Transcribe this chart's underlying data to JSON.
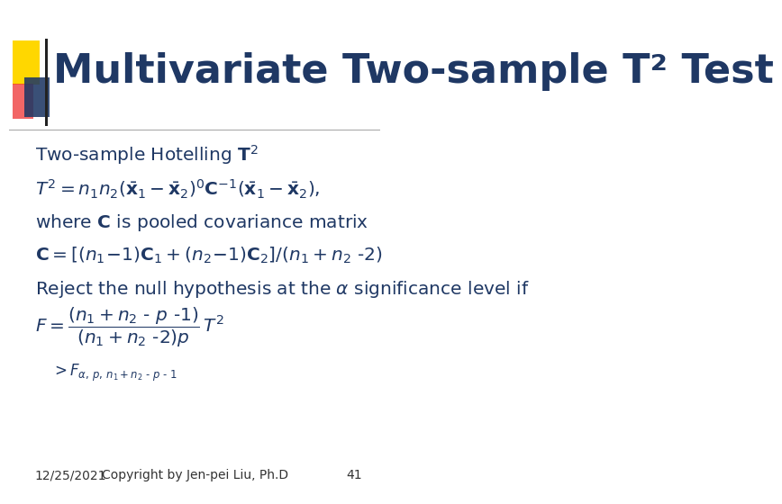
{
  "title": "Multivariate Two-sample T² Test",
  "title_color": "#1F3864",
  "title_fontsize": 32,
  "bg_color": "#FFFFFF",
  "footer_date": "12/25/2021",
  "footer_copy": "Copyright by Jen-pei Liu, Ph.D",
  "footer_page": "41",
  "accent_gold": "#FFD700",
  "accent_red": "#EE3333",
  "accent_blue": "#1F3864",
  "body_color": "#1F3864",
  "separator_color": "#AAAAAA",
  "footer_color": "#333333"
}
